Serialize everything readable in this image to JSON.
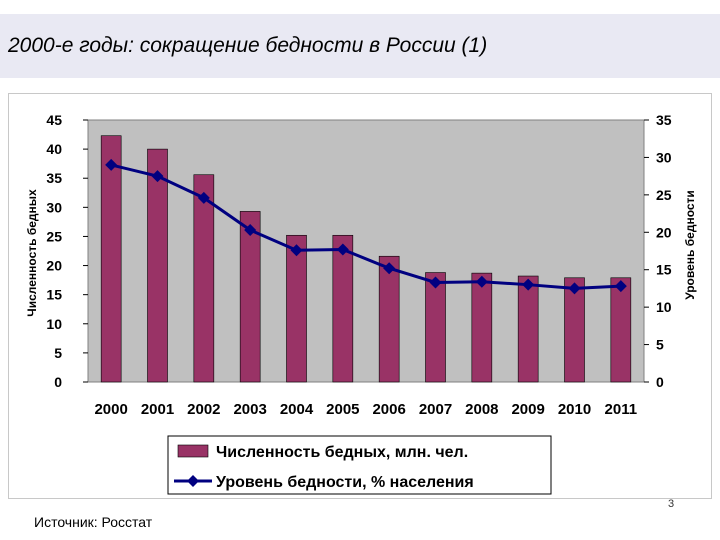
{
  "slide": {
    "title": "2000-е годы: сокращение бедности в России (1)",
    "source": "Источник: Росстат",
    "page_number": "3"
  },
  "colors": {
    "title_band": "#e9e9f3",
    "plot_area": "#c0c0c0",
    "bar_fill": "#993366",
    "line": "#000080"
  },
  "chart_data": {
    "type": "bar",
    "categories": [
      "2000",
      "2001",
      "2002",
      "2003",
      "2004",
      "2005",
      "2006",
      "2007",
      "2008",
      "2009",
      "2010",
      "2011"
    ],
    "series": [
      {
        "name": "Численность бедных, млн. чел.",
        "type": "bar",
        "axis": "left",
        "values": [
          42.3,
          40.0,
          35.6,
          29.3,
          25.2,
          25.2,
          21.6,
          18.8,
          18.7,
          18.2,
          17.9,
          17.9
        ]
      },
      {
        "name": "Уровень бедности, % населения",
        "type": "line",
        "axis": "right",
        "values": [
          29.0,
          27.5,
          24.6,
          20.3,
          17.6,
          17.7,
          15.2,
          13.3,
          13.4,
          13.0,
          12.5,
          12.8
        ]
      }
    ],
    "y_left": {
      "label": "Численность бедных",
      "lim": [
        0,
        45
      ],
      "ticks": [
        "0",
        "5",
        "10",
        "15",
        "20",
        "25",
        "30",
        "35",
        "40",
        "45"
      ]
    },
    "y_right": {
      "label": "Уровень бедности",
      "lim": [
        0,
        35
      ],
      "ticks": [
        "0",
        "5",
        "10",
        "15",
        "20",
        "25",
        "30",
        "35"
      ]
    },
    "grid": false,
    "legend_position": "bottom"
  }
}
